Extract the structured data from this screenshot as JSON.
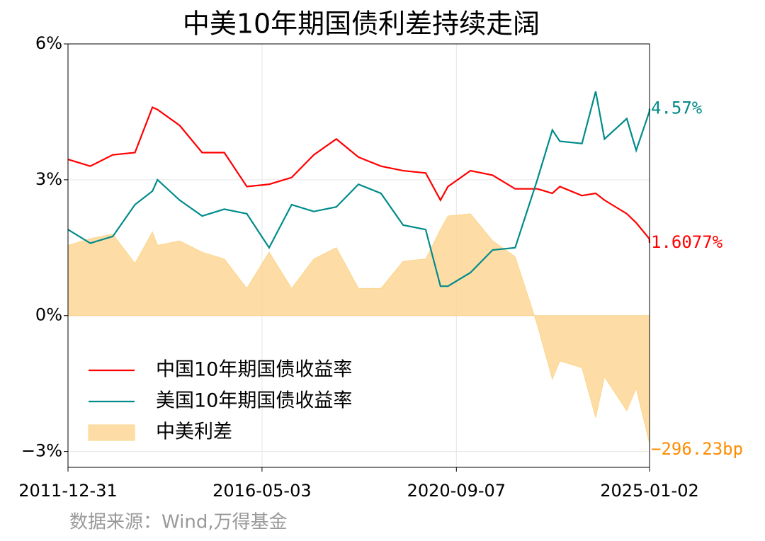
{
  "chart_data": {
    "type": "line",
    "title": "中美10年期国债利差持续走阔",
    "source": "数据来源：Wind,万得基金",
    "x": [
      "2011-12-31",
      "2012-06-30",
      "2012-12-31",
      "2013-06-30",
      "2013-11-20",
      "2013-12-31",
      "2014-06-30",
      "2014-12-31",
      "2015-06-30",
      "2015-12-31",
      "2016-06-30",
      "2016-12-31",
      "2017-06-30",
      "2017-12-31",
      "2018-06-30",
      "2018-12-31",
      "2019-06-30",
      "2019-12-31",
      "2020-04-30",
      "2020-06-30",
      "2020-12-31",
      "2021-06-30",
      "2021-12-31",
      "2022-06-30",
      "2022-10-31",
      "2022-12-31",
      "2023-06-30",
      "2023-10-20",
      "2023-12-31",
      "2024-06-30",
      "2024-09-15",
      "2024-12-31",
      "2025-01-02"
    ],
    "series": [
      {
        "name": "中国10年期国债收益率",
        "kind": "line",
        "color": "#ff0000",
        "label_color": "#ff0000",
        "values": [
          3.45,
          3.3,
          3.55,
          3.6,
          4.6,
          4.55,
          4.2,
          3.6,
          3.6,
          2.85,
          2.9,
          3.05,
          3.55,
          3.9,
          3.5,
          3.3,
          3.2,
          3.15,
          2.55,
          2.85,
          3.2,
          3.1,
          2.8,
          2.8,
          2.7,
          2.85,
          2.65,
          2.7,
          2.55,
          2.25,
          2.05,
          1.7,
          1.6077
        ],
        "last_label": "1.6077%"
      },
      {
        "name": "美国10年期国债收益率",
        "kind": "line",
        "color": "#008b8b",
        "label_color": "#008b8b",
        "values": [
          1.9,
          1.6,
          1.75,
          2.45,
          2.75,
          3.0,
          2.55,
          2.2,
          2.35,
          2.25,
          1.5,
          2.45,
          2.3,
          2.4,
          2.9,
          2.7,
          2.0,
          1.9,
          0.65,
          0.65,
          0.95,
          1.45,
          1.5,
          3.0,
          4.1,
          3.85,
          3.8,
          4.95,
          3.9,
          4.35,
          3.65,
          4.5,
          4.57
        ],
        "last_label": "4.57%"
      },
      {
        "name": "中美利差",
        "kind": "area",
        "color": "#fcd58e",
        "label_color": "#ff8c00",
        "values": [
          1.55,
          1.7,
          1.8,
          1.15,
          1.85,
          1.55,
          1.65,
          1.4,
          1.25,
          0.6,
          1.4,
          0.6,
          1.25,
          1.5,
          0.6,
          0.6,
          1.2,
          1.25,
          1.9,
          2.2,
          2.25,
          1.65,
          1.3,
          -0.2,
          -1.4,
          -1.0,
          -1.15,
          -2.25,
          -1.35,
          -2.1,
          -1.6,
          -2.8,
          -2.9623
        ],
        "last_label": "−296.23bp"
      }
    ],
    "xlim": [
      "2011-12-31",
      "2025-01-02"
    ],
    "xticks": [
      "2011-12-31",
      "2016-05-03",
      "2020-09-07",
      "2025-01-02"
    ],
    "ylim": [
      -3.35,
      6
    ],
    "yticks": [
      {
        "value": -3,
        "label": "−3%"
      },
      {
        "value": 0,
        "label": "0%"
      },
      {
        "value": 3,
        "label": "3%"
      },
      {
        "value": 6,
        "label": "6%"
      }
    ],
    "grid": true,
    "legend": "lower left"
  }
}
